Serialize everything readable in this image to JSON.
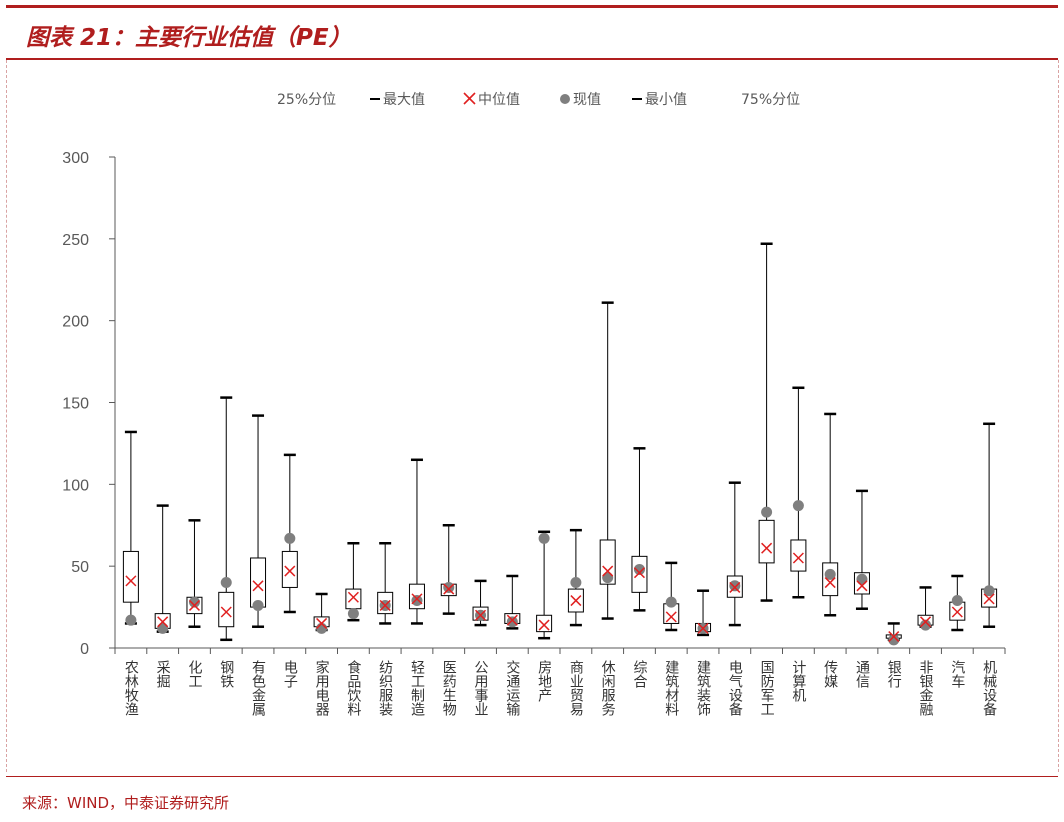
{
  "header": {
    "title": "图表 21：主要行业估值（PE）"
  },
  "footer": {
    "source": "来源：WIND，中泰证券研究所"
  },
  "legend": {
    "p25": "25%分位",
    "max": "最大值",
    "median": "中位值",
    "current": "现值",
    "min": "最小值",
    "p75": "75%分位"
  },
  "colors": {
    "accent": "#b01e1e",
    "median": "#e02020",
    "current": "#7f7f7f",
    "axis": "#595959",
    "box": "#000000"
  },
  "chart_data": {
    "type": "boxplot",
    "title": "主要行业估值（PE）",
    "ylim": [
      0,
      300
    ],
    "yticks": [
      0,
      50,
      100,
      150,
      200,
      250,
      300
    ],
    "categories": [
      "农林牧渔",
      "采掘",
      "化工",
      "钢铁",
      "有色金属",
      "电子",
      "家用电器",
      "食品饮料",
      "纺织服装",
      "轻工制造",
      "医药生物",
      "公用事业",
      "交通运输",
      "房地产",
      "商业贸易",
      "休闲服务",
      "综合",
      "建筑材料",
      "建筑装饰",
      "电气设备",
      "国防军工",
      "计算机",
      "传媒",
      "通信",
      "银行",
      "非银金融",
      "汽车",
      "机械设备"
    ],
    "series": [
      {
        "name": "最小值",
        "values": [
          15,
          10,
          13,
          5,
          13,
          22,
          11,
          17,
          15,
          15,
          21,
          14,
          12,
          6,
          14,
          18,
          23,
          11,
          8,
          14,
          29,
          31,
          20,
          24,
          5,
          13,
          11,
          13
        ]
      },
      {
        "name": "25%分位",
        "values": [
          28,
          12,
          21,
          13,
          25,
          37,
          13,
          24,
          21,
          24,
          32,
          17,
          15,
          10,
          22,
          39,
          34,
          15,
          10,
          31,
          52,
          47,
          32,
          33,
          6,
          14,
          17,
          25
        ]
      },
      {
        "name": "中位值",
        "values": [
          41,
          16,
          26,
          22,
          38,
          47,
          15,
          31,
          26,
          30,
          36,
          20,
          17,
          14,
          29,
          47,
          46,
          19,
          12,
          37,
          61,
          55,
          40,
          38,
          7,
          16,
          22,
          30
        ]
      },
      {
        "name": "75%分位",
        "values": [
          59,
          21,
          31,
          34,
          55,
          59,
          19,
          36,
          34,
          39,
          39,
          25,
          21,
          20,
          36,
          66,
          56,
          27,
          15,
          44,
          78,
          66,
          52,
          46,
          8,
          20,
          28,
          36
        ]
      },
      {
        "name": "最大值",
        "values": [
          132,
          87,
          78,
          153,
          142,
          118,
          33,
          64,
          64,
          115,
          75,
          41,
          44,
          71,
          72,
          211,
          122,
          52,
          35,
          101,
          247,
          159,
          143,
          96,
          15,
          37,
          44,
          137
        ]
      },
      {
        "name": "现值",
        "values": [
          17,
          12,
          28,
          40,
          26,
          67,
          12,
          21,
          26,
          29,
          37,
          20,
          16,
          67,
          40,
          43,
          48,
          28,
          12,
          38,
          83,
          87,
          45,
          42,
          5,
          14,
          29,
          35
        ]
      }
    ]
  }
}
